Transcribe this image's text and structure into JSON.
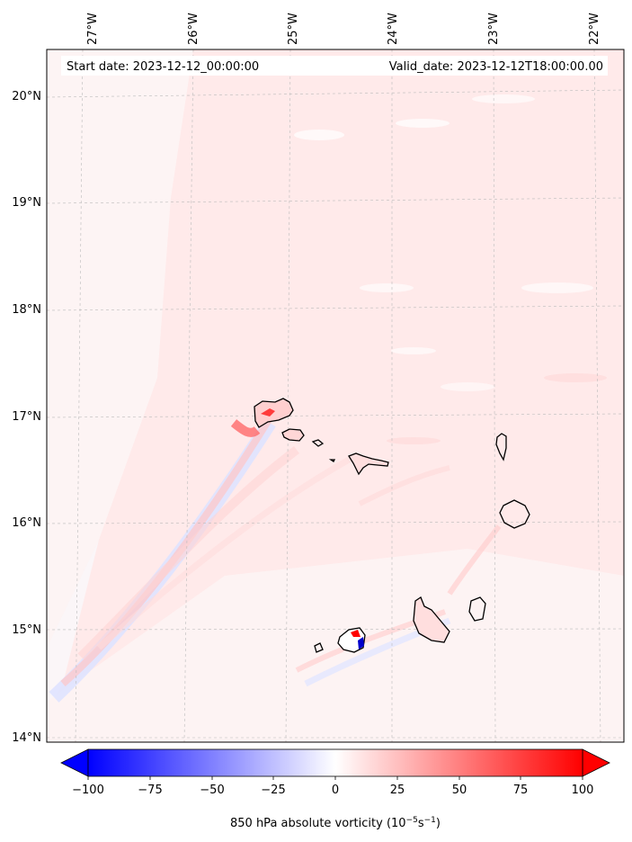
{
  "map": {
    "start_label": "Start date: 2023-12-12_00:00:00",
    "valid_label": "Valid_date: 2023-12-12T18:00:00.00",
    "lon_ticks": [
      "27°W",
      "26°W",
      "25°W",
      "24°W",
      "23°W",
      "22°W"
    ],
    "lat_ticks": [
      "20°N",
      "19°N",
      "18°N",
      "17°N",
      "16°N",
      "15°N",
      "14°N"
    ]
  },
  "colorbar": {
    "ticks": [
      "−100",
      "−75",
      "−50",
      "−25",
      "0",
      "25",
      "50",
      "75",
      "100"
    ],
    "range": [
      -100,
      100
    ],
    "label_main": "850 hPa absolute vorticity (10",
    "label_sup1": "−5",
    "label_mid": "s",
    "label_sup2": "−1",
    "label_end": ")",
    "neg_color": "#0000ff",
    "zero_color": "#ffffff",
    "pos_color": "#ff0000"
  }
}
